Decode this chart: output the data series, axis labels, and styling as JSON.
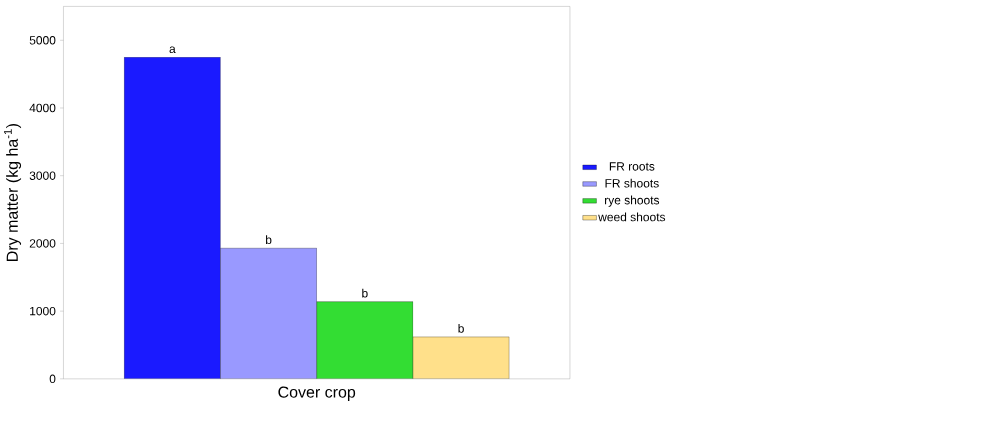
{
  "chart_data": {
    "type": "bar",
    "xlabel": "Cover crop",
    "ylabel": "Dry matter (kg ha$^{-1}$)",
    "categories": [
      null
    ],
    "ylim": [
      0,
      5500
    ],
    "yticks": [
      0,
      1000,
      2000,
      3000,
      4000,
      5000
    ],
    "legend": "right",
    "grid": false,
    "series": [
      {
        "name": "FR roots",
        "color": "#1a1aff",
        "values": [
          4750
        ],
        "value_labels": [
          "a"
        ]
      },
      {
        "name": "FR shoots",
        "color": "#9999ff",
        "values": [
          1930
        ],
        "value_labels": [
          "b"
        ]
      },
      {
        "name": "rye shoots",
        "color": "#33dd33",
        "values": [
          1140
        ],
        "value_labels": [
          "b"
        ]
      },
      {
        "name": "weed shoots",
        "color": "#ffe08a",
        "values": [
          620
        ],
        "value_labels": [
          "b"
        ]
      }
    ]
  }
}
